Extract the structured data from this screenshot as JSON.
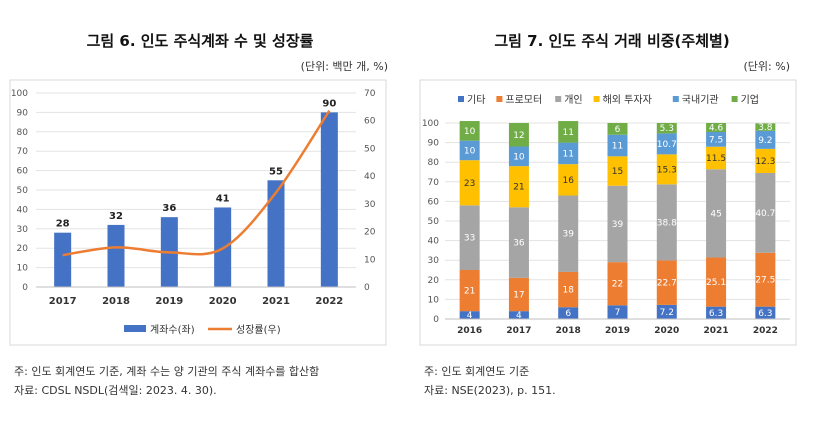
{
  "chart_data": [
    {
      "type": "bar+line",
      "title": "그림 6. 인도 주식계좌 수 및 성장률",
      "unit_note": "(단위: 백만 개, %)",
      "categories": [
        "2017",
        "2018",
        "2019",
        "2020",
        "2021",
        "2022"
      ],
      "series": [
        {
          "name": "계좌수(좌)",
          "type": "bar",
          "axis": "left",
          "color": "#4472c4",
          "values": [
            28,
            32,
            36,
            41,
            55,
            90
          ]
        },
        {
          "name": "성장률(우)",
          "type": "line",
          "axis": "right",
          "color": "#ed7d31",
          "values": [
            11.5,
            14.3,
            12.5,
            13.9,
            34.1,
            63.6
          ]
        }
      ],
      "y_left_ticks": [
        "0",
        "10",
        "20",
        "30",
        "40",
        "50",
        "60",
        "70",
        "80",
        "90",
        "100"
      ],
      "y_right_ticks": [
        "0",
        "10",
        "20",
        "30",
        "40",
        "50",
        "60",
        "70"
      ],
      "ylim_left": [
        0,
        100
      ],
      "ylim_right": [
        0,
        70
      ],
      "grid": true,
      "legend_position": "bottom",
      "data_labels": [
        "28",
        "32",
        "36",
        "41",
        "55",
        "90"
      ],
      "footnote": "주: 인도 회계연도 기준, 계좌 수는 양 기관의 주식 계좌수를 합산함",
      "source": "자료: CDSL NSDL(검색일: 2023. 4. 30)."
    },
    {
      "type": "stacked_bar",
      "title": "그림 7. 인도 주식 거래 비중(주체별)",
      "unit_note": "(단위: %)",
      "categories": [
        "2016",
        "2017",
        "2018",
        "2019",
        "2020",
        "2021",
        "2022"
      ],
      "series": [
        {
          "name": "기타",
          "color": "#4472c4",
          "values": [
            4,
            4,
            6,
            7,
            7.2,
            6.3,
            6.3
          ],
          "labels": [
            "4",
            "4",
            "6",
            "7",
            "7.2",
            "6.3",
            "6.3"
          ]
        },
        {
          "name": "프로모터",
          "color": "#ed7d31",
          "values": [
            21,
            17,
            18,
            22,
            22.7,
            25.1,
            27.5
          ],
          "labels": [
            "21",
            "17",
            "18",
            "22",
            "22.7",
            "25.1",
            "27.5"
          ]
        },
        {
          "name": "개인",
          "color": "#a5a5a5",
          "values": [
            33,
            36,
            39,
            39,
            38.8,
            45,
            40.7
          ],
          "labels": [
            "33",
            "36",
            "39",
            "39",
            "38.8",
            "45",
            "40.7"
          ]
        },
        {
          "name": "해외 투자자",
          "color": "#ffc000",
          "values": [
            23,
            21,
            16,
            15,
            15.3,
            11.5,
            12.3
          ],
          "labels": [
            "23",
            "21",
            "16",
            "15",
            "15.3",
            "11.5",
            "12.3"
          ]
        },
        {
          "name": "국내기관",
          "color": "#5b9bd5",
          "values": [
            10,
            10,
            11,
            11,
            10.7,
            7.5,
            9.2
          ],
          "labels": [
            "10",
            "10",
            "11",
            "11",
            "10.7",
            "7.5",
            "9.2"
          ]
        },
        {
          "name": "기업",
          "color": "#70ad47",
          "values": [
            10,
            12,
            11,
            6,
            5.3,
            4.6,
            3.8
          ],
          "labels": [
            "10",
            "12",
            "11",
            "6",
            "5.3",
            "4.6",
            "3.8"
          ]
        }
      ],
      "y_ticks": [
        "0",
        "10",
        "20",
        "30",
        "40",
        "50",
        "60",
        "70",
        "80",
        "90",
        "100"
      ],
      "ylim": [
        0,
        100
      ],
      "grid": true,
      "legend_position": "top",
      "footnote": "주: 인도 회계연도 기준",
      "source": "자료: NSE(2023), p. 151."
    }
  ]
}
